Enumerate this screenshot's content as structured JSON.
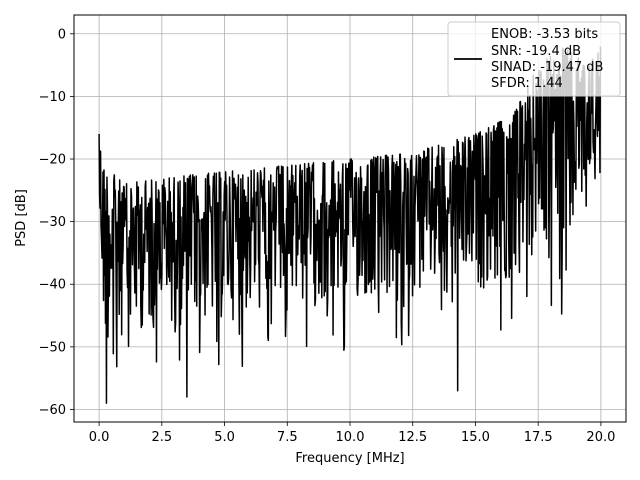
{
  "chart_data": {
    "type": "line",
    "xlabel": "Frequency [MHz]",
    "ylabel": "PSD [dB]",
    "xlim": [
      -1.0,
      21.0
    ],
    "ylim": [
      -62,
      3
    ],
    "x_ticks": [
      0.0,
      2.5,
      5.0,
      7.5,
      10.0,
      12.5,
      15.0,
      17.5,
      20.0
    ],
    "x_tick_labels": [
      "0.0",
      "2.5",
      "5.0",
      "7.5",
      "10.0",
      "12.5",
      "15.0",
      "17.5",
      "20.0"
    ],
    "y_ticks": [
      0,
      -10,
      -20,
      -30,
      -40,
      -50,
      -60
    ],
    "y_tick_labels": [
      "0",
      "−10",
      "−20",
      "−30",
      "−40",
      "−50",
      "−60"
    ],
    "grid": true,
    "legend_position": "top-right",
    "legend": {
      "lines": [
        "ENOB: -3.53 bits",
        "SNR: -19.4 dB",
        "SINAD: -19.47 dB",
        "SFDR: 1.44"
      ],
      "color": "#000000"
    },
    "series": [
      {
        "color": "#000000",
        "x_range": [
          0.0,
          20.0
        ],
        "n_points": 1024,
        "envelope": {
          "x": [
            0.0,
            0.2,
            1.0,
            2.5,
            5.0,
            7.5,
            10.0,
            12.5,
            15.0,
            16.5,
            17.5,
            18.5,
            19.5,
            20.0
          ],
          "upper": [
            -16,
            -21,
            -24,
            -23,
            -22,
            -21,
            -20,
            -19,
            -16,
            -13,
            -5,
            -2,
            -5,
            -2
          ],
          "lower": [
            -34,
            -50,
            -48,
            -47,
            -46,
            -44,
            -43,
            -42,
            -41,
            -40,
            -35,
            -40,
            -25,
            -22
          ]
        },
        "notable_minima": [
          {
            "x": 0.3,
            "y": -59
          },
          {
            "x": 3.5,
            "y": -58
          },
          {
            "x": 14.3,
            "y": -57
          }
        ]
      }
    ]
  }
}
